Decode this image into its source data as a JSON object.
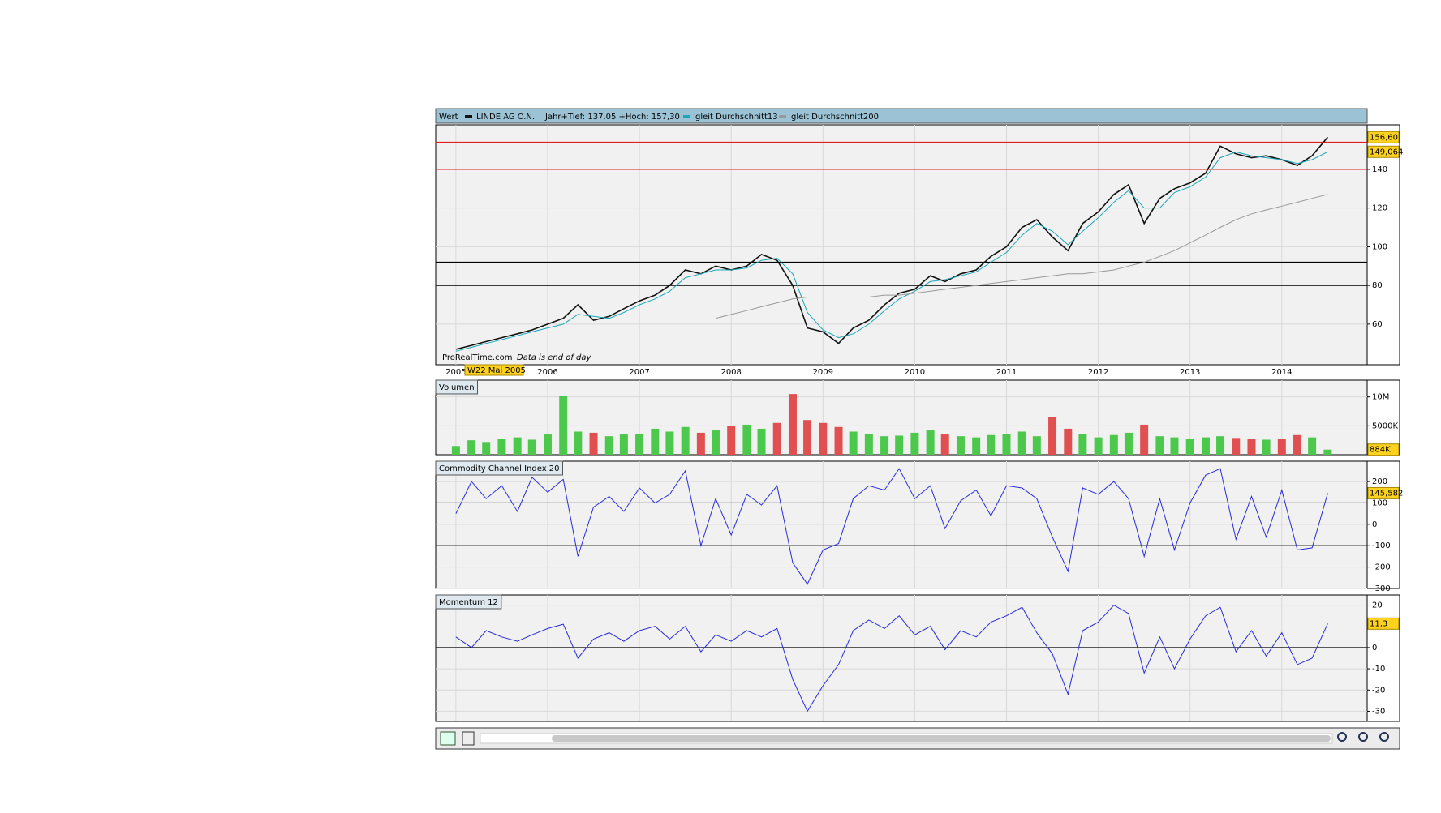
{
  "chart_data": [
    {
      "type": "line",
      "header_label": "Wert",
      "range_text": "Jahr+Tief: 137,05 +Hoch: 157,30",
      "source": "ProRealTime.com",
      "note": "Data is end of day",
      "cursor_label": "W22 Mai 2005",
      "x": [
        2005.0,
        2005.17,
        2005.33,
        2005.5,
        2005.67,
        2005.83,
        2006.0,
        2006.17,
        2006.33,
        2006.5,
        2006.67,
        2006.83,
        2007.0,
        2007.17,
        2007.33,
        2007.5,
        2007.67,
        2007.83,
        2008.0,
        2008.17,
        2008.33,
        2008.5,
        2008.67,
        2008.83,
        2009.0,
        2009.17,
        2009.33,
        2009.5,
        2009.67,
        2009.83,
        2010.0,
        2010.17,
        2010.33,
        2010.5,
        2010.67,
        2010.83,
        2011.0,
        2011.17,
        2011.33,
        2011.5,
        2011.67,
        2011.83,
        2012.0,
        2012.17,
        2012.33,
        2012.5,
        2012.67,
        2012.83,
        2013.0,
        2013.17,
        2013.33,
        2013.5,
        2013.67,
        2013.83,
        2014.0,
        2014.17,
        2014.33,
        2014.5
      ],
      "xlim": [
        2004.78,
        2014.93
      ],
      "xticks": [
        2005,
        2006,
        2007,
        2008,
        2009,
        2010,
        2011,
        2012,
        2013,
        2014
      ],
      "ylim": [
        39,
        163
      ],
      "yticks": [
        60,
        80,
        100,
        120,
        140
      ],
      "grid": true,
      "hlines": [
        {
          "value": 154,
          "color": "#e02020"
        },
        {
          "value": 140,
          "color": "#e02020"
        },
        {
          "value": 92,
          "color": "#000000"
        },
        {
          "value": 80,
          "color": "#000000"
        }
      ],
      "series": [
        {
          "name": "LINDE AG O.N.",
          "color": "#111111",
          "marker": {
            "value": 156.6,
            "label": "156,60"
          },
          "values": [
            47,
            49,
            51,
            53,
            55,
            57,
            60,
            63,
            70,
            62,
            64,
            68,
            72,
            75,
            80,
            88,
            86,
            90,
            88,
            90,
            96,
            93,
            80,
            58,
            56,
            50,
            58,
            62,
            70,
            76,
            78,
            85,
            82,
            86,
            88,
            95,
            100,
            110,
            114,
            105,
            98,
            112,
            118,
            127,
            132,
            112,
            125,
            130,
            133,
            138,
            152,
            148,
            146,
            147,
            145,
            142,
            147,
            156.6
          ]
        },
        {
          "name": "gleit Durchschnitt13",
          "color": "#1aa7b8",
          "marker": {
            "value": 149.064,
            "label": "149,064"
          },
          "values": [
            46,
            48,
            50,
            52,
            54,
            56,
            58,
            60,
            65,
            64,
            63,
            66,
            70,
            73,
            77,
            84,
            86,
            88,
            88,
            89,
            93,
            94,
            86,
            66,
            57,
            53,
            55,
            60,
            67,
            73,
            77,
            82,
            83,
            85,
            87,
            92,
            97,
            106,
            112,
            108,
            101,
            108,
            115,
            123,
            129,
            120,
            120,
            128,
            131,
            136,
            146,
            149,
            147,
            146,
            145,
            143,
            145,
            149.064
          ]
        },
        {
          "name": "gleit Durchschnitt200",
          "color": "#999999",
          "values": [
            null,
            null,
            null,
            null,
            null,
            null,
            null,
            null,
            null,
            null,
            null,
            null,
            null,
            null,
            null,
            null,
            null,
            63,
            65,
            67,
            69,
            71,
            73,
            74,
            74,
            74,
            74,
            74,
            75,
            75,
            76,
            77,
            78,
            79,
            80,
            81,
            82,
            83,
            84,
            85,
            86,
            86,
            87,
            88,
            90,
            92,
            95,
            98,
            102,
            106,
            110,
            114,
            117,
            119,
            121,
            123,
            125,
            127
          ]
        }
      ]
    },
    {
      "type": "bar",
      "title": "Volumen",
      "up_color": "#4cc94c",
      "down_color": "#e05050",
      "ylim": [
        0,
        12900000
      ],
      "yticks": [
        {
          "value": 5000000,
          "label": "5000K"
        },
        {
          "value": 10000000,
          "label": "10M"
        }
      ],
      "grid": true,
      "marker": {
        "value": 884000,
        "label": "884K"
      },
      "values": [
        1500000,
        2500000,
        2200000,
        2800000,
        3000000,
        2600000,
        3500000,
        10200000,
        4000000,
        3800000,
        3200000,
        3500000,
        3600000,
        4500000,
        4000000,
        4800000,
        3800000,
        4200000,
        5000000,
        5200000,
        4500000,
        5500000,
        10500000,
        6000000,
        5500000,
        4800000,
        4000000,
        3600000,
        3200000,
        3300000,
        3800000,
        4200000,
        3500000,
        3200000,
        3000000,
        3400000,
        3600000,
        4000000,
        3200000,
        6500000,
        4500000,
        3600000,
        3000000,
        3400000,
        3800000,
        5200000,
        3200000,
        3000000,
        2800000,
        3000000,
        3200000,
        2900000,
        2800000,
        2600000,
        2800000,
        3400000,
        3000000,
        884000
      ]
    },
    {
      "type": "line",
      "title": "Commodity Channel Index 20",
      "ylim": [
        -300,
        295
      ],
      "yticks": [
        -300,
        -200,
        -100,
        0,
        100,
        200
      ],
      "grid": true,
      "hlines": [
        {
          "value": 100,
          "color": "#000000"
        },
        {
          "value": -100,
          "color": "#000000"
        }
      ],
      "series": [
        {
          "color": "#2b2bdd",
          "marker": {
            "value": 145.582,
            "label": "145,582"
          },
          "values": [
            50,
            200,
            120,
            180,
            60,
            220,
            150,
            210,
            -150,
            80,
            130,
            60,
            170,
            100,
            140,
            250,
            -100,
            120,
            -50,
            140,
            90,
            180,
            -180,
            -280,
            -120,
            -90,
            120,
            180,
            160,
            260,
            120,
            180,
            -20,
            110,
            160,
            40,
            180,
            170,
            120,
            -60,
            -220,
            170,
            140,
            200,
            120,
            -150,
            120,
            -120,
            100,
            230,
            260,
            -70,
            130,
            -60,
            160,
            -120,
            -110,
            145.582
          ]
        }
      ]
    },
    {
      "type": "line",
      "title": "Momentum 12",
      "ylim": [
        -34.8,
        24.8
      ],
      "yticks": [
        -30,
        -20,
        -10,
        0,
        20
      ],
      "grid": true,
      "hlines": [
        {
          "value": 0,
          "color": "#000000"
        }
      ],
      "series": [
        {
          "color": "#2b2bdd",
          "marker": {
            "value": 11.3,
            "label": "11,3"
          },
          "values": [
            5,
            0,
            8,
            5,
            3,
            6,
            9,
            11,
            -5,
            4,
            7,
            3,
            8,
            10,
            4,
            10,
            -2,
            6,
            3,
            8,
            5,
            9,
            -15,
            -30,
            -18,
            -8,
            8,
            13,
            9,
            15,
            6,
            10,
            -1,
            8,
            5,
            12,
            15,
            19,
            7,
            -3,
            -22,
            8,
            12,
            20,
            16,
            -12,
            5,
            -10,
            4,
            15,
            19,
            -2,
            8,
            -4,
            7,
            -8,
            -5,
            11.3
          ]
        }
      ]
    }
  ]
}
